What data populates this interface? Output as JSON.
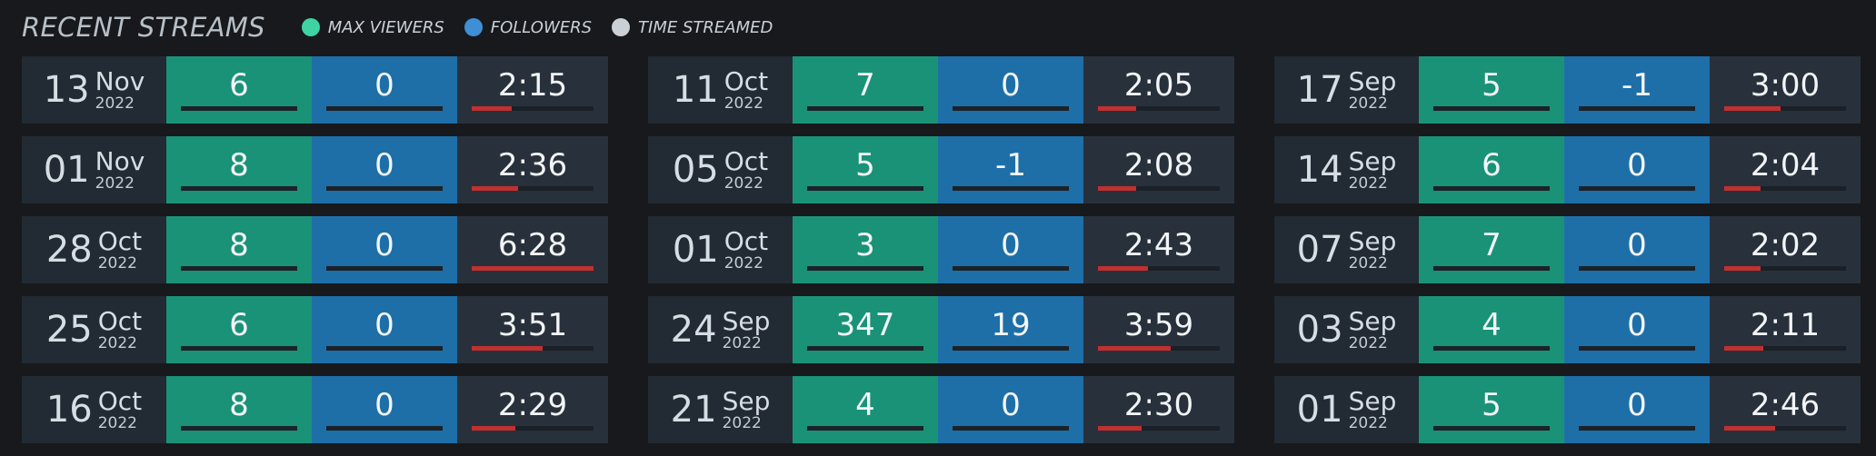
{
  "header": {
    "title": "RECENT STREAMS",
    "legend": [
      {
        "label": "MAX VIEWERS",
        "color": "#3fd3a3"
      },
      {
        "label": "FOLLOWERS",
        "color": "#3f8fd6"
      },
      {
        "label": "TIME STREAMED",
        "color": "#c9d0d6"
      }
    ]
  },
  "colors": {
    "viewers": "#1a9278",
    "followers": "#1e6fa8",
    "time_bar": "#c03030"
  },
  "columns": [
    [
      {
        "day": "13",
        "month": "Nov",
        "year": "2022",
        "viewers": "6",
        "followers": "0",
        "time": "2:15",
        "time_fraction": 0.33
      },
      {
        "day": "01",
        "month": "Nov",
        "year": "2022",
        "viewers": "8",
        "followers": "0",
        "time": "2:36",
        "time_fraction": 0.38
      },
      {
        "day": "28",
        "month": "Oct",
        "year": "2022",
        "viewers": "8",
        "followers": "0",
        "time": "6:28",
        "time_fraction": 1.0
      },
      {
        "day": "25",
        "month": "Oct",
        "year": "2022",
        "viewers": "6",
        "followers": "0",
        "time": "3:51",
        "time_fraction": 0.58
      },
      {
        "day": "16",
        "month": "Oct",
        "year": "2022",
        "viewers": "8",
        "followers": "0",
        "time": "2:29",
        "time_fraction": 0.36
      }
    ],
    [
      {
        "day": "11",
        "month": "Oct",
        "year": "2022",
        "viewers": "7",
        "followers": "0",
        "time": "2:05",
        "time_fraction": 0.31
      },
      {
        "day": "05",
        "month": "Oct",
        "year": "2022",
        "viewers": "5",
        "followers": "-1",
        "time": "2:08",
        "time_fraction": 0.31
      },
      {
        "day": "01",
        "month": "Oct",
        "year": "2022",
        "viewers": "3",
        "followers": "0",
        "time": "2:43",
        "time_fraction": 0.41
      },
      {
        "day": "24",
        "month": "Sep",
        "year": "2022",
        "viewers": "347",
        "followers": "19",
        "time": "3:59",
        "time_fraction": 0.6
      },
      {
        "day": "21",
        "month": "Sep",
        "year": "2022",
        "viewers": "4",
        "followers": "0",
        "time": "2:30",
        "time_fraction": 0.36
      }
    ],
    [
      {
        "day": "17",
        "month": "Sep",
        "year": "2022",
        "viewers": "5",
        "followers": "-1",
        "time": "3:00",
        "time_fraction": 0.46
      },
      {
        "day": "14",
        "month": "Sep",
        "year": "2022",
        "viewers": "6",
        "followers": "0",
        "time": "2:04",
        "time_fraction": 0.3
      },
      {
        "day": "07",
        "month": "Sep",
        "year": "2022",
        "viewers": "7",
        "followers": "0",
        "time": "2:02",
        "time_fraction": 0.3
      },
      {
        "day": "03",
        "month": "Sep",
        "year": "2022",
        "viewers": "4",
        "followers": "0",
        "time": "2:11",
        "time_fraction": 0.32
      },
      {
        "day": "01",
        "month": "Sep",
        "year": "2022",
        "viewers": "5",
        "followers": "0",
        "time": "2:46",
        "time_fraction": 0.42
      }
    ]
  ]
}
